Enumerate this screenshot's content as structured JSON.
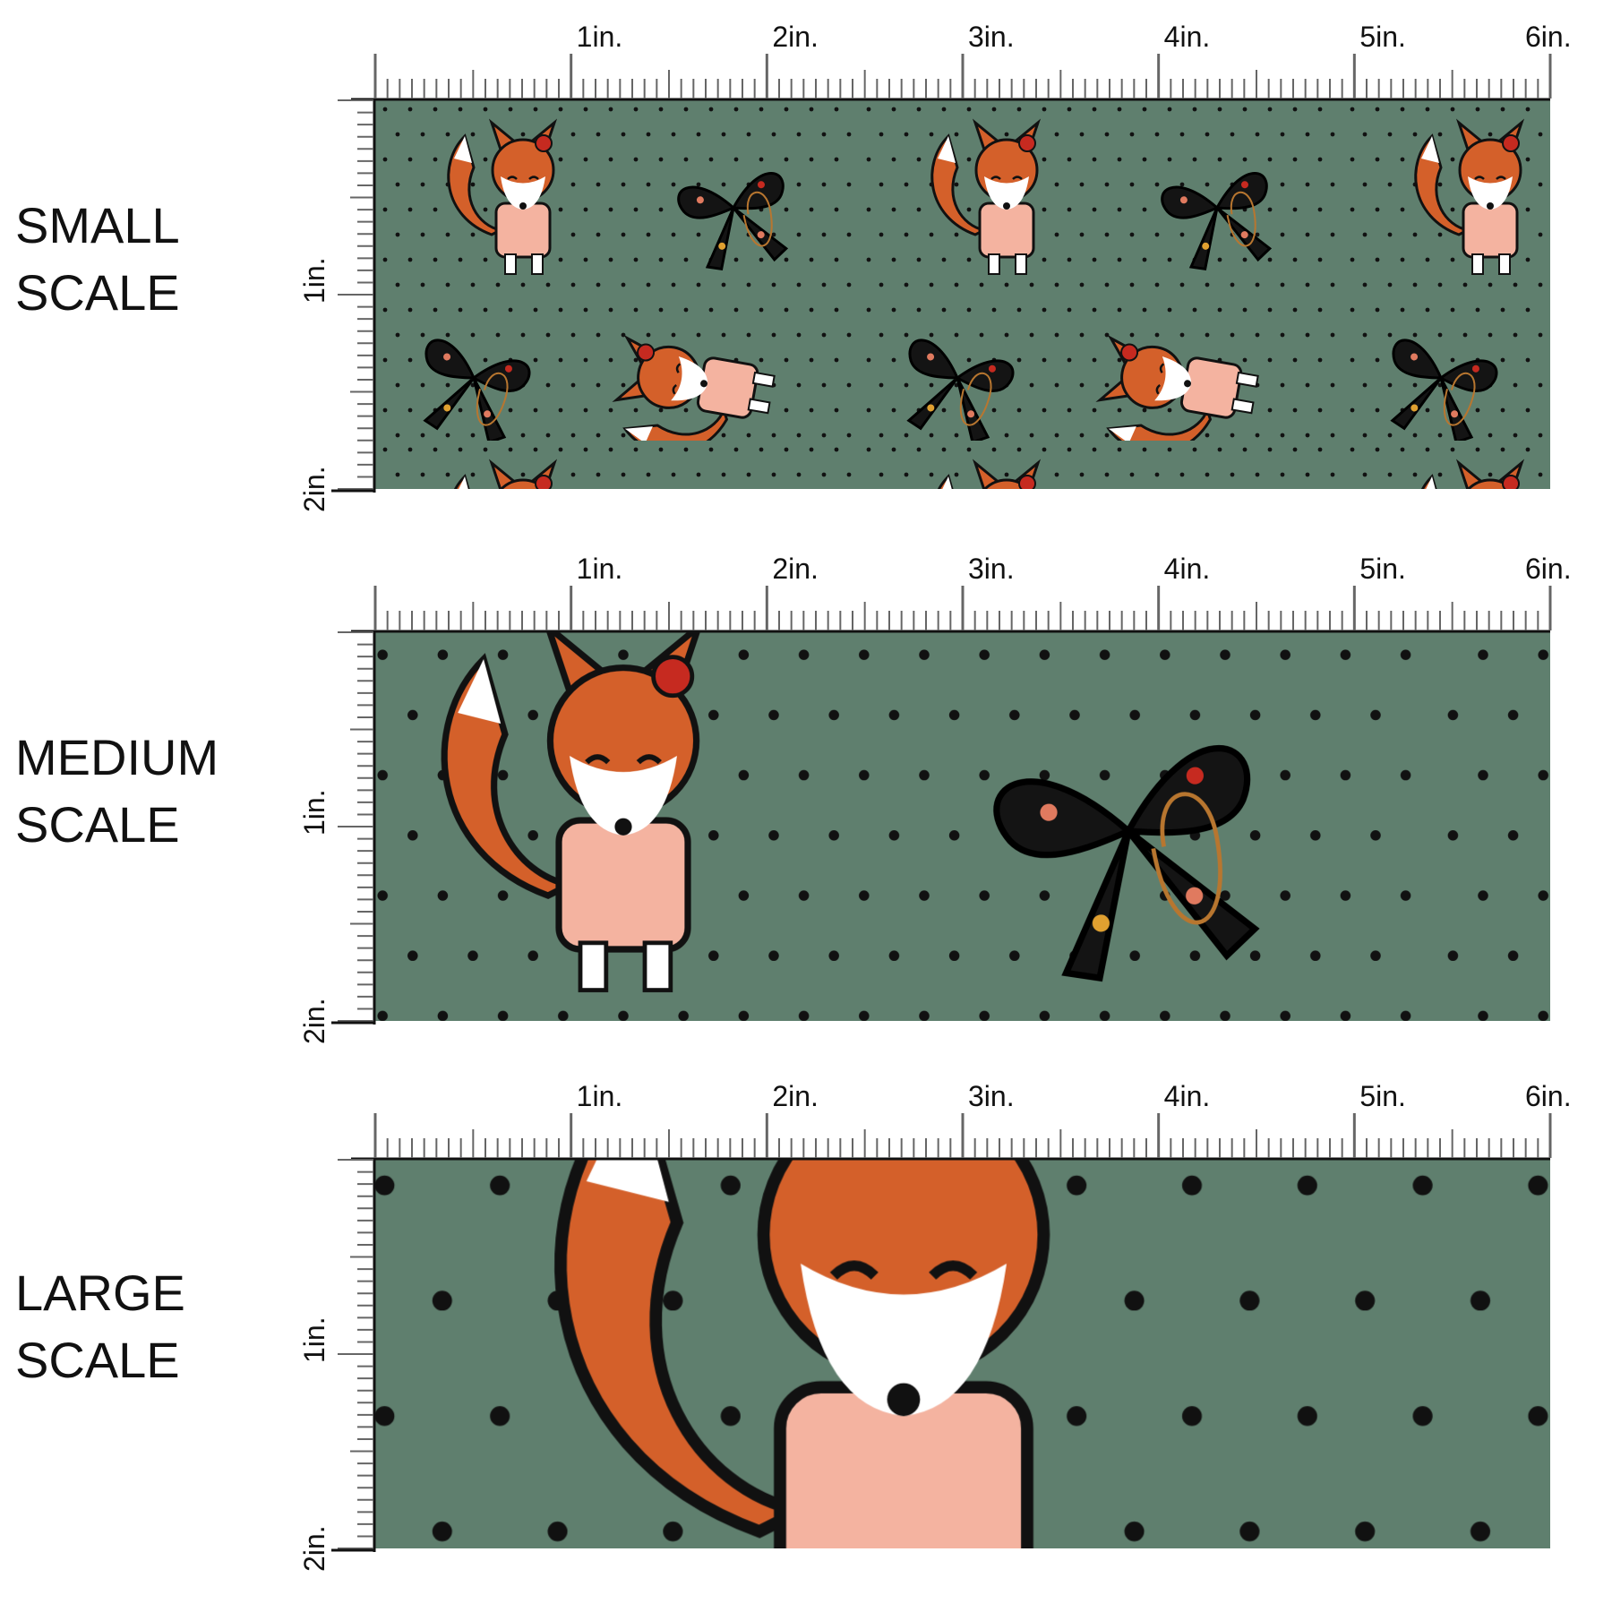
{
  "panels": [
    {
      "label": [
        "SMALL",
        "SCALE"
      ],
      "top_ruler": [
        "1in.",
        "2in.",
        "3in.",
        "4in.",
        "5in.",
        "6in."
      ],
      "side_ruler": [
        "1in.",
        "2in."
      ]
    },
    {
      "label": [
        "MEDIUM",
        "SCALE"
      ],
      "top_ruler": [
        "1in.",
        "2in.",
        "3in.",
        "4in.",
        "5in.",
        "6in."
      ],
      "side_ruler": [
        "1in.",
        "2in."
      ]
    },
    {
      "label": [
        "LARGE",
        "SCALE"
      ],
      "top_ruler": [
        "1in.",
        "2in.",
        "3in.",
        "4in.",
        "5in.",
        "6in."
      ],
      "side_ruler": [
        "1in.",
        "2in."
      ]
    }
  ]
}
